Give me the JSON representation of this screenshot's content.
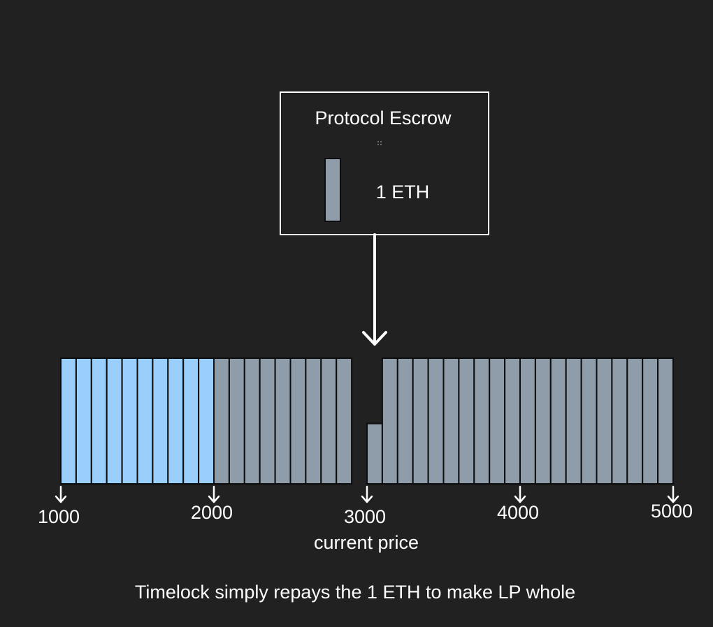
{
  "escrow": {
    "title": "Protocol Escrow",
    "amount_label": "1 ETH",
    "token_color": "#8f9ca9"
  },
  "ticks": [
    {
      "label": "1000"
    },
    {
      "label": "2000"
    },
    {
      "label": "3000"
    },
    {
      "label": "4000"
    },
    {
      "label": "5000"
    }
  ],
  "current_price_label": "current price",
  "caption": "Timelock simply repays the 1 ETH to make LP whole",
  "colors": {
    "background": "#212121",
    "liquidity_blue": "#99cffa",
    "liquidity_gray": "#8f9ca9",
    "outline": "#0d0d0d",
    "foreground": "#ffffff"
  },
  "chart_data": {
    "type": "bar",
    "x_start": 1000,
    "x_end": 5000,
    "bar_count": 40,
    "blue_bar_count": 10,
    "full_level": 1,
    "partial_bar_index": 20,
    "partial_level": 0.48,
    "empty_bar_index": 19,
    "empty_level": 0
  }
}
